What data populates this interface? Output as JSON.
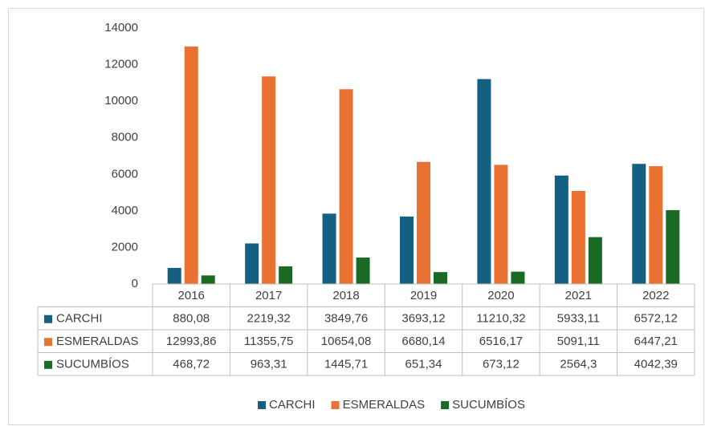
{
  "chart_data": {
    "type": "bar",
    "categories": [
      "2016",
      "2017",
      "2018",
      "2019",
      "2020",
      "2021",
      "2022"
    ],
    "series": [
      {
        "name": "CARCHI",
        "color": "#156082",
        "values": [
          880.08,
          2219.32,
          3849.76,
          3693.12,
          11210.32,
          5933.11,
          6572.12
        ],
        "value_labels": [
          "880,08",
          "2219,32",
          "3849,76",
          "3693,12",
          "11210,32",
          "5933,11",
          "6572,12"
        ]
      },
      {
        "name": "ESMERALDAS",
        "color": "#e97132",
        "values": [
          12993.86,
          11355.75,
          10654.08,
          6680.14,
          6516.17,
          5091.11,
          6447.21
        ],
        "value_labels": [
          "12993,86",
          "11355,75",
          "10654,08",
          "6680,14",
          "6516,17",
          "5091,11",
          "6447,21"
        ]
      },
      {
        "name": "SUCUMBÍOS",
        "color": "#196b24",
        "values": [
          468.72,
          963.31,
          1445.71,
          651.34,
          673.12,
          2564.3,
          4042.39
        ],
        "value_labels": [
          "468,72",
          "963,31",
          "1445,71",
          "651,34",
          "673,12",
          "2564,3",
          "4042,39"
        ]
      }
    ],
    "ylim": [
      0,
      14000
    ],
    "yticks": [
      0,
      2000,
      4000,
      6000,
      8000,
      10000,
      12000,
      14000
    ],
    "grid": false,
    "legend": "bottom"
  }
}
